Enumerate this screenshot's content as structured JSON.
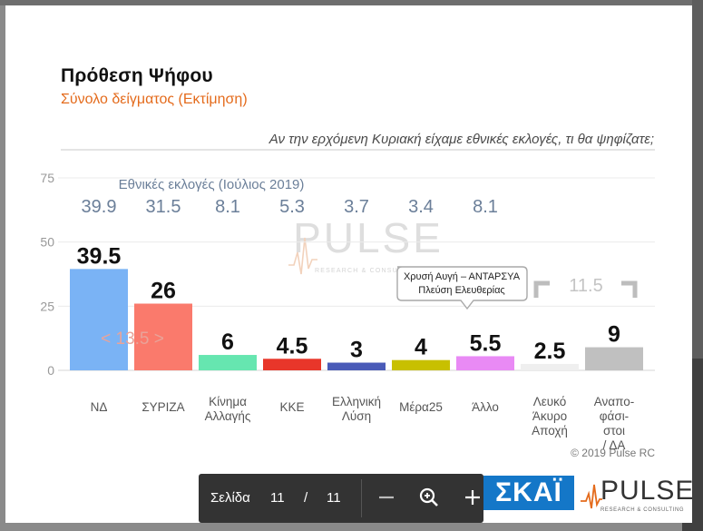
{
  "viewer": {
    "page_label": "Σελίδα",
    "current_page": "11",
    "separator": "/",
    "total_pages": "11"
  },
  "slide": {
    "title": "Πρόθεση Ψήφου",
    "subtitle": "Σύνολο δείγματος   (Εκτίμηση)",
    "question": "Αν την ερχόμενη Κυριακή είχαμε εθνικές εκλογές, τι θα ψηφίζατε;",
    "copyright": "© 2019 Pulse RC",
    "watermark": "PULSE",
    "watermark_sub": "RESEARCH & CONSULTING"
  },
  "logos": {
    "skai": "ΣΚΑΪ",
    "pulse": "PULSE",
    "pulse_sub": "RESEARCH & CONSULTING"
  },
  "chart_data": {
    "type": "bar",
    "ylim": [
      0,
      75
    ],
    "yticks": [
      0,
      25,
      50,
      75
    ],
    "grid": true,
    "categories": [
      [
        "ΝΔ"
      ],
      [
        "ΣΥΡΙΖΑ"
      ],
      [
        "Κίνημα",
        "Αλλαγής"
      ],
      [
        "ΚΚΕ"
      ],
      [
        "Ελληνική",
        "Λύση"
      ],
      [
        "Μέρα25"
      ],
      [
        "Άλλο"
      ],
      [
        "Λευκό",
        "Άκυρο",
        "Αποχή"
      ],
      [
        "Αναπο-",
        "φάσι-",
        "στοι",
        "/ ΔΑ"
      ]
    ],
    "series": [
      {
        "values": [
          39.5,
          26,
          6,
          4.5,
          3,
          4,
          5.5,
          2.5,
          9
        ],
        "value_labels": [
          "39.5",
          "26",
          "6",
          "4.5",
          "3",
          "4",
          "5.5",
          "2.5",
          "9"
        ]
      }
    ],
    "colors": [
      "#7ab3f5",
      "#fa7a6c",
      "#66e6b0",
      "#e8362a",
      "#4a5bb8",
      "#c8c000",
      "#e98af5",
      "#efefef",
      "#c0c0c0"
    ],
    "reference": {
      "label": "Εθνικές εκλογές (Ιούλιος 2019)",
      "values": [
        "39.9",
        "31.5",
        "8.1",
        "5.3",
        "3.7",
        "3.4",
        "8.1"
      ]
    },
    "annotations": {
      "gap": "< 13.5 >",
      "bracket": "11.5",
      "callout_lines": [
        "Χρυσή Αυγή – ΑΝΤΑΡΣΥΑ",
        "Πλεύση Ελευθερίας"
      ]
    }
  }
}
